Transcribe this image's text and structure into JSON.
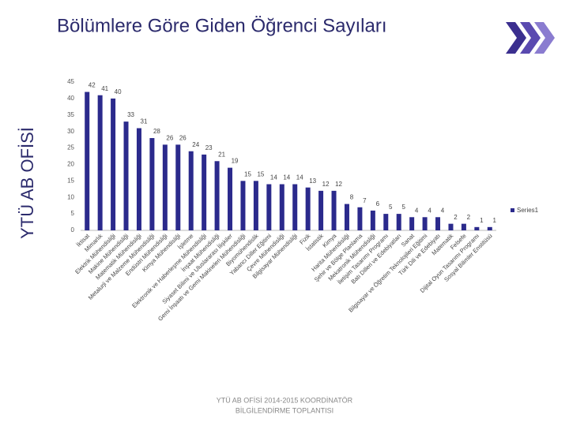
{
  "chart_data": {
    "type": "bar",
    "title": "Bölümlere Göre Giden Öğrenci Sayıları",
    "categories": [
      "İktisat",
      "Mimarlık",
      "Elektrik Mühendisliği",
      "Makine Mühendisliği",
      "Matematik Mühendisliği",
      "Metalurji ve Malzeme Mühendisliği",
      "Endüstri Mühendisliği",
      "Kimya Mühendisliği",
      "İşletme",
      "Elektronik ve Haberleşme Mühendisliği",
      "İnşaat Mühendisliği",
      "Siyaset Bilimi ve Uluslararası İlişkiler",
      "Gemi İnşaatı ve Gemi Makineleri Mühendisliği",
      "Biyomühendislik",
      "Yabancı Diller Eğitimi",
      "Çevre Mühendisliği",
      "Bilgisayar Mühendisliği",
      "Fizik",
      "İstatistik",
      "Kimya",
      "Harita Mühendisliği",
      "Şehir ve Bölge Planlama",
      "Mekatronik Mühendisliği",
      "İletişim Tasarımı Programı",
      "Batı Dilleri ve Edebiyatları",
      "Sanat",
      "Bilgisayar ve Öğretim Teknolojileri Eğitimi",
      "Türk Dili ve Edebiyatı",
      "Matematik",
      "Felsefe",
      "Dijital Oyun Tasarımı Programı",
      "Sosyal Bilimler Enstitüsü"
    ],
    "series": [
      {
        "name": "Series1",
        "color": "#2b2a8c",
        "values": [
          42,
          41,
          40,
          33,
          31,
          28,
          26,
          26,
          24,
          23,
          21,
          19,
          15,
          15,
          14,
          14,
          14,
          13,
          12,
          12,
          8,
          7,
          6,
          5,
          5,
          4,
          4,
          4,
          2,
          2,
          1,
          1
        ]
      }
    ],
    "ylim": [
      0,
      45
    ],
    "yticks": [
      0,
      5,
      10,
      15,
      20,
      25,
      30,
      35,
      40,
      45
    ],
    "grid": false,
    "legend": "right"
  },
  "slide": {
    "side_label": "YTÜ  AB  OFİSİ",
    "footer": [
      "YTÜ AB OFİSİ 2014-2015   KOORDİNATÖR",
      "BİLGİLENDİRME TOPLANTISI"
    ]
  }
}
